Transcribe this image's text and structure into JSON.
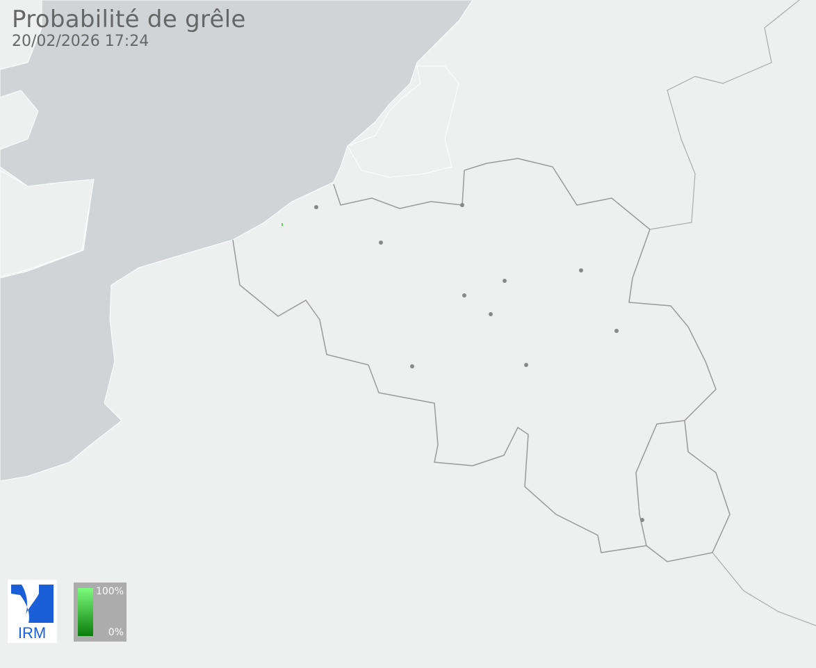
{
  "header": {
    "title": "Probabilité de grêle",
    "timestamp": "20/02/2026 17:24"
  },
  "logo": {
    "text": "IRM",
    "color": "#1a5fd8"
  },
  "legend": {
    "max_label": "100%",
    "min_label": "0%",
    "color_max": "#7dfc7d",
    "color_min": "#0a7d0a"
  },
  "map": {
    "land_color": "#eef0ef",
    "sea_color": "#d1d4d6",
    "border_color": "#999999",
    "city_markers": 11,
    "hail_cells": [
      {
        "probability_percent": 60
      }
    ]
  }
}
